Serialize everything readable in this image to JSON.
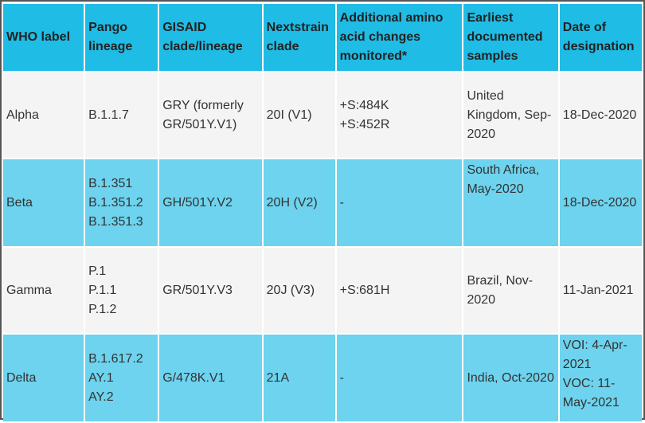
{
  "headers": [
    "WHO label",
    "Pango lineage",
    "GISAID clade/lineage",
    "Nextstrain clade",
    "Additional amino acid changes monitored*",
    "Earliest documented samples",
    "Date of designation"
  ],
  "rows": [
    {
      "who": "Alpha",
      "pango": [
        "B.1.1.7"
      ],
      "gisaid": "GRY (formerly GR/501Y.V1)",
      "nextstrain": "20I (V1)",
      "aa": [
        "+S:484K",
        "+S:452R"
      ],
      "earliest": "United Kingdom, Sep-2020",
      "date": [
        "18-Dec-2020"
      ]
    },
    {
      "who": "Beta",
      "pango": [
        "B.1.351",
        "B.1.351.2",
        "B.1.351.3"
      ],
      "gisaid": "GH/501Y.V2",
      "nextstrain": "20H (V2)",
      "aa": [
        "-"
      ],
      "earliest": "South Africa, May-2020",
      "date": [
        "18-Dec-2020"
      ]
    },
    {
      "who": "Gamma",
      "pango": [
        "P.1",
        "P.1.1",
        "P.1.2"
      ],
      "gisaid": "GR/501Y.V3",
      "nextstrain": "20J (V3)",
      "aa": [
        "+S:681H"
      ],
      "earliest": "Brazil, Nov-2020",
      "date": [
        "11-Jan-2021"
      ]
    },
    {
      "who": "Delta",
      "pango": [
        "B.1.617.2",
        "AY.1",
        "AY.2"
      ],
      "gisaid": "G/478K.V1",
      "nextstrain": "21A",
      "aa": [
        "-"
      ],
      "earliest": "India, Oct-2020",
      "date": [
        "VOI: 4-Apr-2021",
        "VOC: 11-May-2021"
      ]
    }
  ],
  "colors": {
    "header_bg": "#1fbce5",
    "alt_row_bg": "#6dd3ee",
    "row_bg": "#f4f4f4"
  }
}
